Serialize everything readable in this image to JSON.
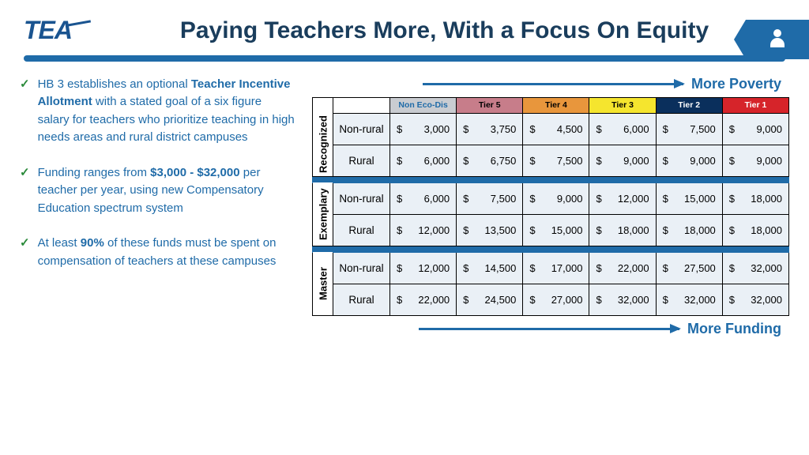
{
  "logo": "TEA",
  "title": "Paying Teachers More, With a Focus On Equity",
  "arrows": {
    "top": "More Poverty",
    "bottom": "More Funding"
  },
  "bullets": [
    {
      "pre": "HB 3 establishes an optional ",
      "bold": "Teacher Incentive Allotment",
      "post": " with a stated goal of a six figure salary for teachers who prioritize teaching in high needs areas and rural district campuses"
    },
    {
      "pre": "Funding ranges from ",
      "bold": "$3,000 - $32,000",
      "post": " per teacher per year, using new Compensatory Education spectrum system"
    },
    {
      "pre": "At least ",
      "bold": "90%",
      "post": " of these funds must be spent on compensation of teachers at these campuses"
    }
  ],
  "tiers": [
    {
      "label": "Non Eco-Dis",
      "bg": "#c9ccd1",
      "fg": "#1f6ba8"
    },
    {
      "label": "Tier 5",
      "bg": "#c77d8a",
      "fg": "#000"
    },
    {
      "label": "Tier 4",
      "bg": "#e8963c",
      "fg": "#000"
    },
    {
      "label": "Tier 3",
      "bg": "#f5e52e",
      "fg": "#000"
    },
    {
      "label": "Tier 2",
      "bg": "#0a2f5c",
      "fg": "#fff"
    },
    {
      "label": "Tier 1",
      "bg": "#d6242a",
      "fg": "#fff"
    }
  ],
  "groups": [
    {
      "name": "Recognized",
      "rows": [
        {
          "label": "Non-rural",
          "vals": [
            "3,000",
            "3,750",
            "4,500",
            "6,000",
            "7,500",
            "9,000"
          ]
        },
        {
          "label": "Rural",
          "vals": [
            "6,000",
            "6,750",
            "7,500",
            "9,000",
            "9,000",
            "9,000"
          ]
        }
      ]
    },
    {
      "name": "Exemplary",
      "rows": [
        {
          "label": "Non-rural",
          "vals": [
            "6,000",
            "7,500",
            "9,000",
            "12,000",
            "15,000",
            "18,000"
          ]
        },
        {
          "label": "Rural",
          "vals": [
            "12,000",
            "13,500",
            "15,000",
            "18,000",
            "18,000",
            "18,000"
          ]
        }
      ]
    },
    {
      "name": "Master",
      "rows": [
        {
          "label": "Non-rural",
          "vals": [
            "12,000",
            "14,500",
            "17,000",
            "22,000",
            "27,500",
            "32,000"
          ]
        },
        {
          "label": "Rural",
          "vals": [
            "22,000",
            "24,500",
            "27,000",
            "32,000",
            "32,000",
            "32,000"
          ]
        }
      ]
    }
  ]
}
